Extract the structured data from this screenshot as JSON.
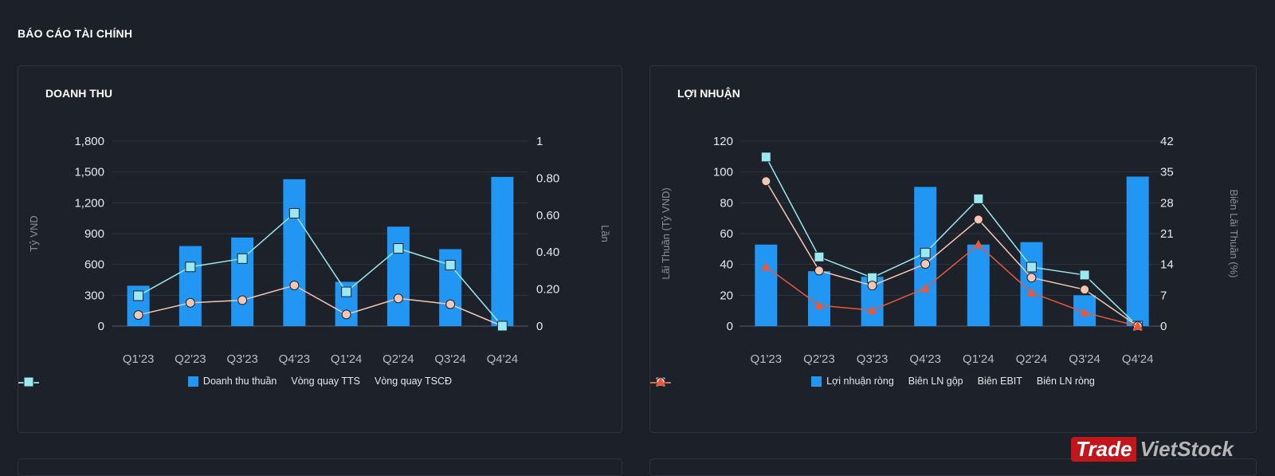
{
  "page": {
    "title": "BÁO CÁO TÀI CHÍNH"
  },
  "watermark": {
    "part1": "Trade",
    "part2": "VietStock"
  },
  "colors": {
    "bar": "#2196f3",
    "cyan": "#9be8f0",
    "peach": "#f4c7b4",
    "red": "#e35a44",
    "grid": "#2f3440"
  },
  "chart_data": [
    {
      "type": "bar+line",
      "title": "DOANH THU",
      "categories": [
        "Q1'23",
        "Q2'23",
        "Q3'23",
        "Q4'23",
        "Q1'24",
        "Q2'24",
        "Q3'24",
        "Q4'24"
      ],
      "ylabel": "Tỷ VND",
      "y2label": "Lần",
      "ylim": [
        0,
        1800
      ],
      "yticks": [
        "0",
        "300",
        "600",
        "900",
        "1,200",
        "1,500",
        "1,800"
      ],
      "y2lim": [
        0,
        1
      ],
      "y2ticks": [
        "0",
        "0.20",
        "0.40",
        "0.60",
        "0.80",
        "1"
      ],
      "grid": true,
      "legend": "bottom",
      "series": [
        {
          "name": "Doanh thu thuần",
          "kind": "bar",
          "axis": "left",
          "color": "#2196f3",
          "values": [
            393,
            779,
            862,
            1429,
            431,
            968,
            749,
            1452
          ]
        },
        {
          "name": "Vòng quay TTS",
          "kind": "line",
          "marker": "circle",
          "axis": "right",
          "color": "#f4c7b4",
          "values": [
            0.06,
            0.126,
            0.14,
            0.22,
            0.063,
            0.15,
            0.118,
            0
          ]
        },
        {
          "name": "Vòng quay TSCĐ",
          "kind": "line",
          "marker": "square",
          "axis": "right",
          "color": "#9be8f0",
          "values": [
            0.164,
            0.32,
            0.365,
            0.61,
            0.185,
            0.42,
            0.33,
            0
          ]
        }
      ]
    },
    {
      "type": "bar+line",
      "title": "LỢI NHUẬN",
      "categories": [
        "Q1'23",
        "Q2'23",
        "Q3'23",
        "Q4'23",
        "Q1'24",
        "Q2'24",
        "Q3'24",
        "Q4'24"
      ],
      "ylabel": "Lãi Thuần (Tỷ VND)",
      "y2label": "Biên Lãi Thuần (%)",
      "ylim": [
        0,
        120
      ],
      "yticks": [
        "0",
        "20",
        "40",
        "60",
        "80",
        "100",
        "120"
      ],
      "y2lim": [
        0,
        42
      ],
      "y2ticks": [
        "0",
        "7",
        "14",
        "21",
        "28",
        "35",
        "42"
      ],
      "grid": true,
      "legend": "bottom",
      "series": [
        {
          "name": "Lợi nhuận ròng",
          "kind": "bar",
          "axis": "left",
          "color": "#2196f3",
          "values": [
            52.9,
            35.6,
            32,
            90.3,
            52.9,
            54.5,
            20,
            97
          ]
        },
        {
          "name": "Biên LN gộp",
          "kind": "line",
          "marker": "square",
          "axis": "right",
          "color": "#9be8f0",
          "values": [
            38.4,
            15.7,
            11,
            16.6,
            28.9,
            13.4,
            11.6,
            0
          ]
        },
        {
          "name": "Biên EBIT",
          "kind": "line",
          "marker": "circle",
          "axis": "right",
          "color": "#f4c7b4",
          "values": [
            32.9,
            12.6,
            9.2,
            14.1,
            24.2,
            11,
            8.3,
            0
          ]
        },
        {
          "name": "Biên LN ròng",
          "kind": "line",
          "marker": "triangle",
          "axis": "right",
          "color": "#e35a44",
          "values": [
            13.5,
            4.7,
            3.6,
            8.6,
            18.5,
            7.6,
            3.1,
            0
          ]
        }
      ]
    }
  ]
}
